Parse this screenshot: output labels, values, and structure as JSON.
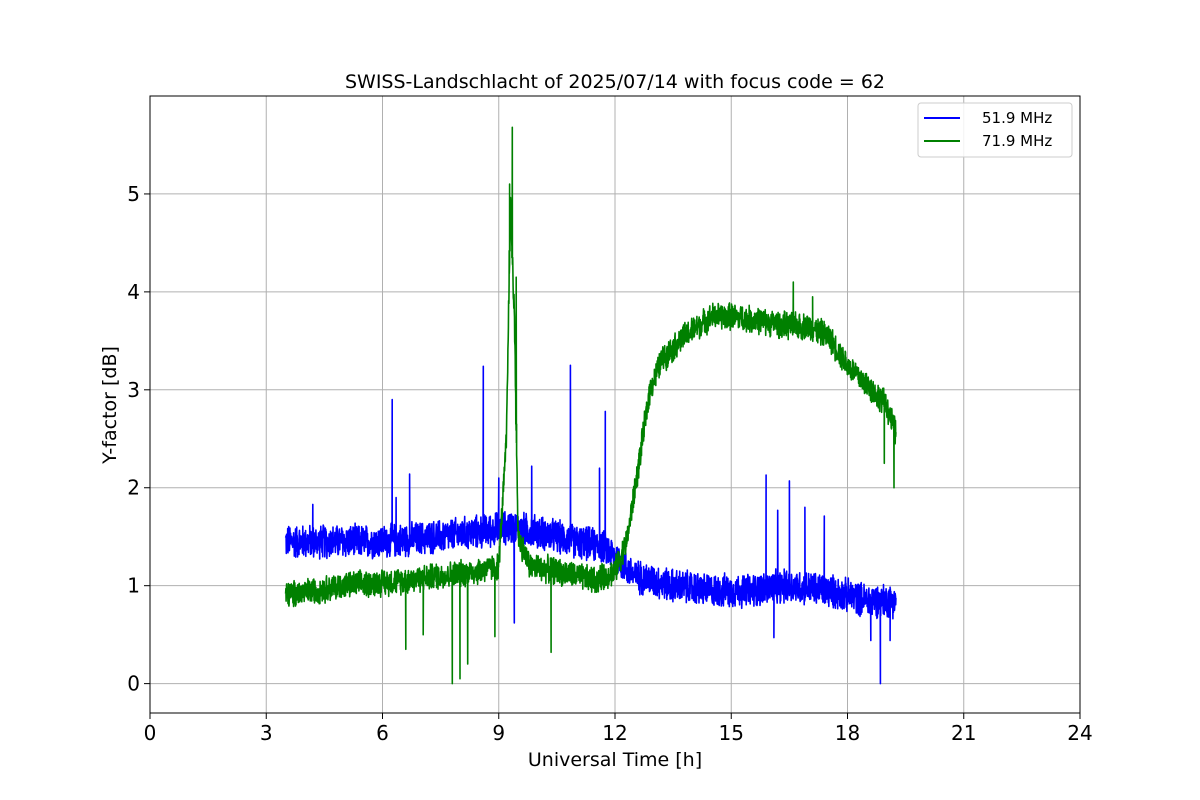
{
  "chart_data": {
    "type": "line",
    "title": "SWISS-Landschlacht of 2025/07/14 with focus code = 62",
    "xlabel": "Universal Time [h]",
    "ylabel": "Y-factor [dB]",
    "xlim": [
      0,
      24
    ],
    "ylim": [
      -0.3,
      6.0
    ],
    "xticks": [
      0,
      3,
      6,
      9,
      12,
      15,
      18,
      21,
      24
    ],
    "yticks": [
      0,
      1,
      2,
      3,
      4,
      5
    ],
    "grid": true,
    "legend_position": "top-right",
    "series": [
      {
        "name": "51.9 MHz",
        "color": "#0000ff",
        "noise": 0.15,
        "x": [
          3.5,
          4.5,
          6.0,
          7.5,
          8.5,
          9.3,
          10.0,
          11.0,
          11.7,
          12.0,
          12.5,
          13.5,
          14.5,
          15.5,
          16.5,
          17.5,
          18.5,
          19.25
        ],
        "y": [
          1.45,
          1.45,
          1.45,
          1.5,
          1.55,
          1.6,
          1.55,
          1.45,
          1.4,
          1.3,
          1.1,
          1.0,
          0.95,
          0.95,
          1.0,
          0.95,
          0.85,
          0.85
        ],
        "spikes": [
          {
            "x": 4.2,
            "y": 1.83
          },
          {
            "x": 6.25,
            "y": 2.9
          },
          {
            "x": 6.35,
            "y": 1.9
          },
          {
            "x": 6.7,
            "y": 2.14
          },
          {
            "x": 8.6,
            "y": 3.24
          },
          {
            "x": 9.0,
            "y": 2.1
          },
          {
            "x": 9.85,
            "y": 2.22
          },
          {
            "x": 10.85,
            "y": 3.25
          },
          {
            "x": 11.6,
            "y": 2.2
          },
          {
            "x": 11.75,
            "y": 2.78
          },
          {
            "x": 15.9,
            "y": 2.13
          },
          {
            "x": 16.5,
            "y": 2.07
          },
          {
            "x": 16.2,
            "y": 1.77
          },
          {
            "x": 16.9,
            "y": 1.8
          },
          {
            "x": 17.4,
            "y": 1.71
          },
          {
            "x": 9.4,
            "y": 0.62
          },
          {
            "x": 16.1,
            "y": 0.47
          },
          {
            "x": 18.6,
            "y": 0.44
          },
          {
            "x": 18.85,
            "y": 0.0
          },
          {
            "x": 19.1,
            "y": 0.44
          }
        ]
      },
      {
        "name": "71.9 MHz",
        "color": "#008000",
        "noise": 0.12,
        "x": [
          3.5,
          5.0,
          6.5,
          7.5,
          8.5,
          9.0,
          9.2,
          9.3,
          9.4,
          9.5,
          9.8,
          10.5,
          11.5,
          12.0,
          12.3,
          12.6,
          12.9,
          13.2,
          13.8,
          14.5,
          15.0,
          15.8,
          16.5,
          17.0,
          17.5,
          18.0,
          18.5,
          19.0,
          19.25
        ],
        "y": [
          0.9,
          1.0,
          1.05,
          1.1,
          1.15,
          1.2,
          2.5,
          4.9,
          3.8,
          1.5,
          1.2,
          1.15,
          1.05,
          1.15,
          1.45,
          2.2,
          3.0,
          3.3,
          3.55,
          3.75,
          3.75,
          3.7,
          3.65,
          3.65,
          3.55,
          3.25,
          3.05,
          2.85,
          2.55
        ],
        "spikes": [
          {
            "x": 9.35,
            "y": 5.68
          },
          {
            "x": 9.28,
            "y": 5.1
          },
          {
            "x": 9.45,
            "y": 4.15
          },
          {
            "x": 6.6,
            "y": 0.35
          },
          {
            "x": 7.05,
            "y": 0.5
          },
          {
            "x": 7.8,
            "y": 0.0
          },
          {
            "x": 8.0,
            "y": 0.05
          },
          {
            "x": 8.2,
            "y": 0.2
          },
          {
            "x": 8.9,
            "y": 0.48
          },
          {
            "x": 10.35,
            "y": 0.32
          },
          {
            "x": 16.6,
            "y": 4.1
          },
          {
            "x": 17.1,
            "y": 3.95
          },
          {
            "x": 18.95,
            "y": 2.25
          },
          {
            "x": 19.2,
            "y": 2.0
          }
        ]
      }
    ]
  }
}
